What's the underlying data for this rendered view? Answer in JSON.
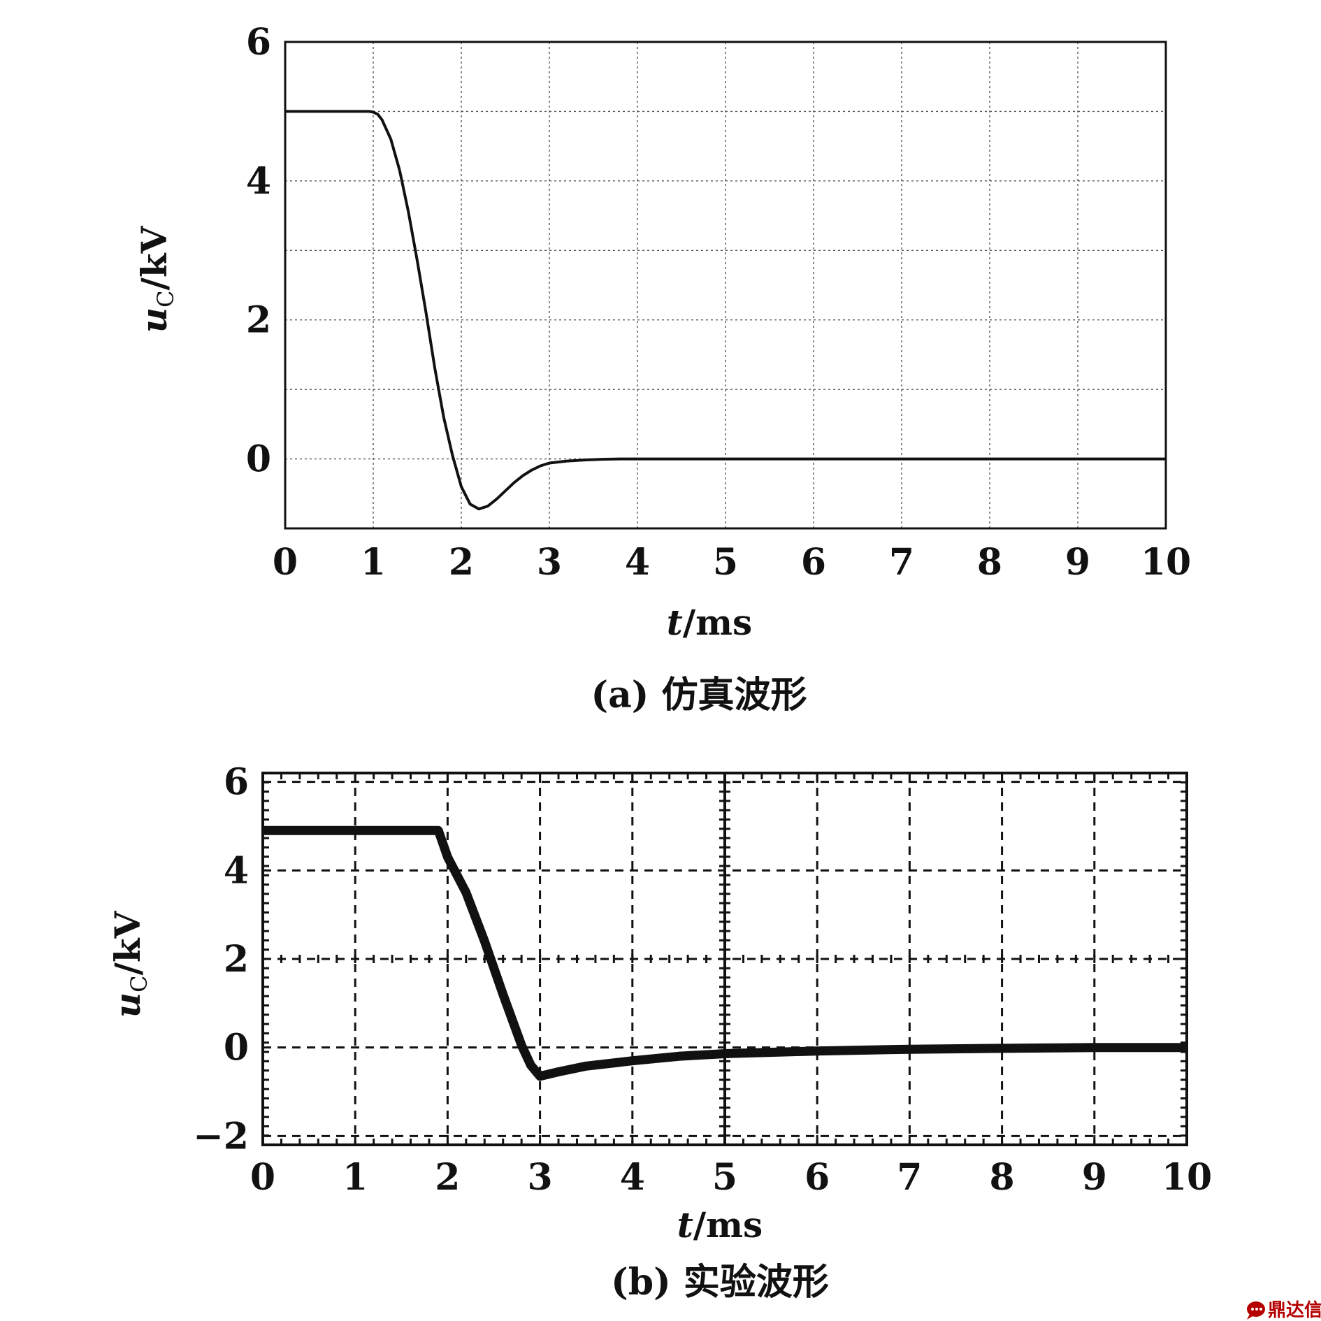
{
  "chart_data": [
    {
      "type": "line",
      "caption": "(a) 仿真波形",
      "ylabel_main": "u",
      "ylabel_sub": "C",
      "ylabel_unit": "/kV",
      "xlabel_var": "t",
      "xlabel_unit": "/ms",
      "xlim": [
        0,
        10
      ],
      "ylim": [
        -1,
        6
      ],
      "x_ticks": [
        0,
        1,
        2,
        3,
        4,
        5,
        6,
        7,
        8,
        9,
        10
      ],
      "y_ticks": [
        0,
        2,
        4,
        6
      ],
      "y_gridlines": [
        0,
        1,
        2,
        3,
        4,
        5
      ],
      "grid": true,
      "grid_style": "dotted",
      "series": [
        {
          "x": [
            0,
            0.95,
            1.0,
            1.05,
            1.1,
            1.2,
            1.3,
            1.4,
            1.5,
            1.6,
            1.7,
            1.8,
            1.9,
            2.0,
            2.1,
            2.2,
            2.3,
            2.4,
            2.5,
            2.6,
            2.7,
            2.8,
            2.9,
            3.0,
            3.2,
            3.4,
            3.6,
            3.8,
            4.0,
            10.0
          ],
          "y": [
            5.0,
            5.0,
            4.99,
            4.96,
            4.88,
            4.6,
            4.15,
            3.55,
            2.85,
            2.1,
            1.3,
            0.6,
            0.05,
            -0.4,
            -0.65,
            -0.72,
            -0.68,
            -0.58,
            -0.46,
            -0.34,
            -0.24,
            -0.16,
            -0.1,
            -0.06,
            -0.03,
            -0.015,
            -0.005,
            0.0,
            0.0,
            0.0
          ]
        }
      ]
    },
    {
      "type": "line",
      "caption": "(b) 实验波形",
      "ylabel_main": "u",
      "ylabel_sub": "C",
      "ylabel_unit": "/kV",
      "xlabel_var": "t",
      "xlabel_unit": "/ms",
      "xlim": [
        0,
        10
      ],
      "ylim": [
        -2.2,
        6.2
      ],
      "x_ticks": [
        0,
        1,
        2,
        3,
        4,
        5,
        6,
        7,
        8,
        9,
        10
      ],
      "y_ticks": [
        -2,
        0,
        2,
        4,
        6
      ],
      "y_tick_labels": [
        "−2",
        "0",
        "2",
        "4",
        "6"
      ],
      "grid": true,
      "grid_style": "dashed",
      "minor_ticks": true,
      "series": [
        {
          "x": [
            0,
            1.0,
            1.9,
            1.95,
            2.0,
            2.2,
            2.4,
            2.6,
            2.8,
            2.9,
            3.0,
            3.2,
            3.5,
            4.0,
            4.5,
            5.0,
            6.0,
            7.0,
            8.0,
            9.0,
            10.0
          ],
          "y": [
            4.9,
            4.9,
            4.9,
            4.6,
            4.3,
            3.5,
            2.4,
            1.2,
            0.05,
            -0.4,
            -0.65,
            -0.55,
            -0.42,
            -0.3,
            -0.2,
            -0.14,
            -0.08,
            -0.04,
            -0.02,
            0.0,
            0.0
          ]
        }
      ]
    }
  ],
  "watermark": {
    "icon": "speech-bubble-logo",
    "text": "鼎达信",
    "color": "#b40000"
  }
}
